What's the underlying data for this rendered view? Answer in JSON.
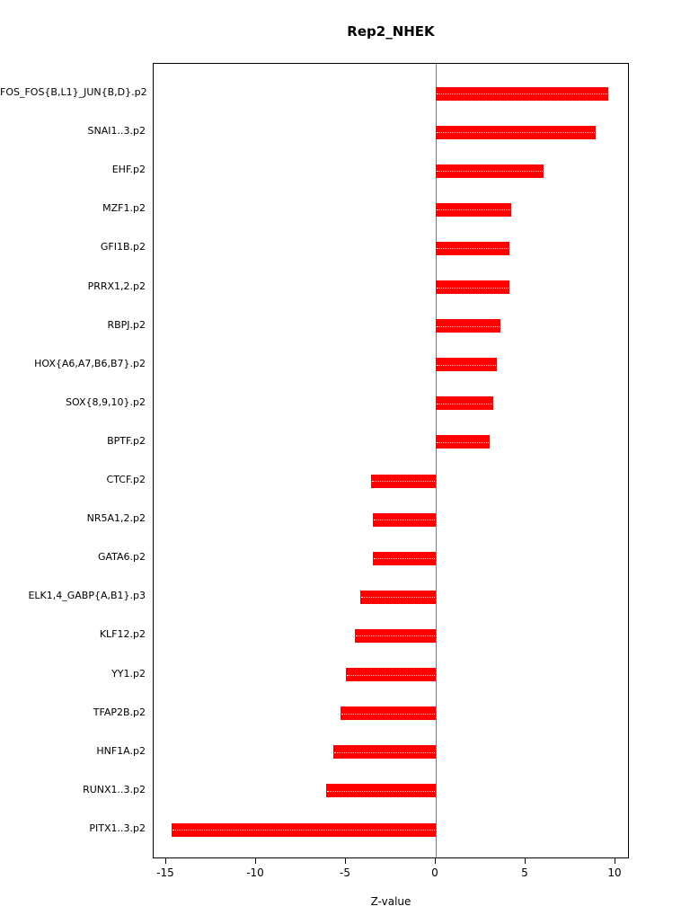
{
  "title": "Rep2_NHEK",
  "chart_data": {
    "type": "bar",
    "orientation": "horizontal",
    "title": "Rep2_NHEK",
    "xlabel": "Z-value",
    "ylabel": "",
    "xlim": [
      -15.7,
      10.8
    ],
    "xticks": [
      -15,
      -10,
      -5,
      0,
      5,
      10
    ],
    "grid": false,
    "legend": false,
    "bar_color": "#ff0000",
    "zero_line_color": "#00d400",
    "categories": [
      "FOS_FOS{B,L1}_JUN{B,D}.p2",
      "SNAI1..3.p2",
      "EHF.p2",
      "MZF1.p2",
      "GFI1B.p2",
      "PRRX1,2.p2",
      "RBPJ.p2",
      "HOX{A6,A7,B6,B7}.p2",
      "SOX{8,9,10}.p2",
      "BPTF.p2",
      "CTCF.p2",
      "NR5A1,2.p2",
      "GATA6.p2",
      "ELK1,4_GABP{A,B1}.p3",
      "KLF12.p2",
      "YY1.p2",
      "TFAP2B.p2",
      "HNF1A.p2",
      "RUNX1..3.p2",
      "PITX1..3.p2"
    ],
    "values": [
      9.6,
      8.9,
      6.0,
      4.2,
      4.1,
      4.1,
      3.6,
      3.4,
      3.2,
      3.0,
      -3.6,
      -3.5,
      -3.5,
      -4.2,
      -4.5,
      -5.0,
      -5.3,
      -5.7,
      -6.1,
      -14.7
    ]
  }
}
